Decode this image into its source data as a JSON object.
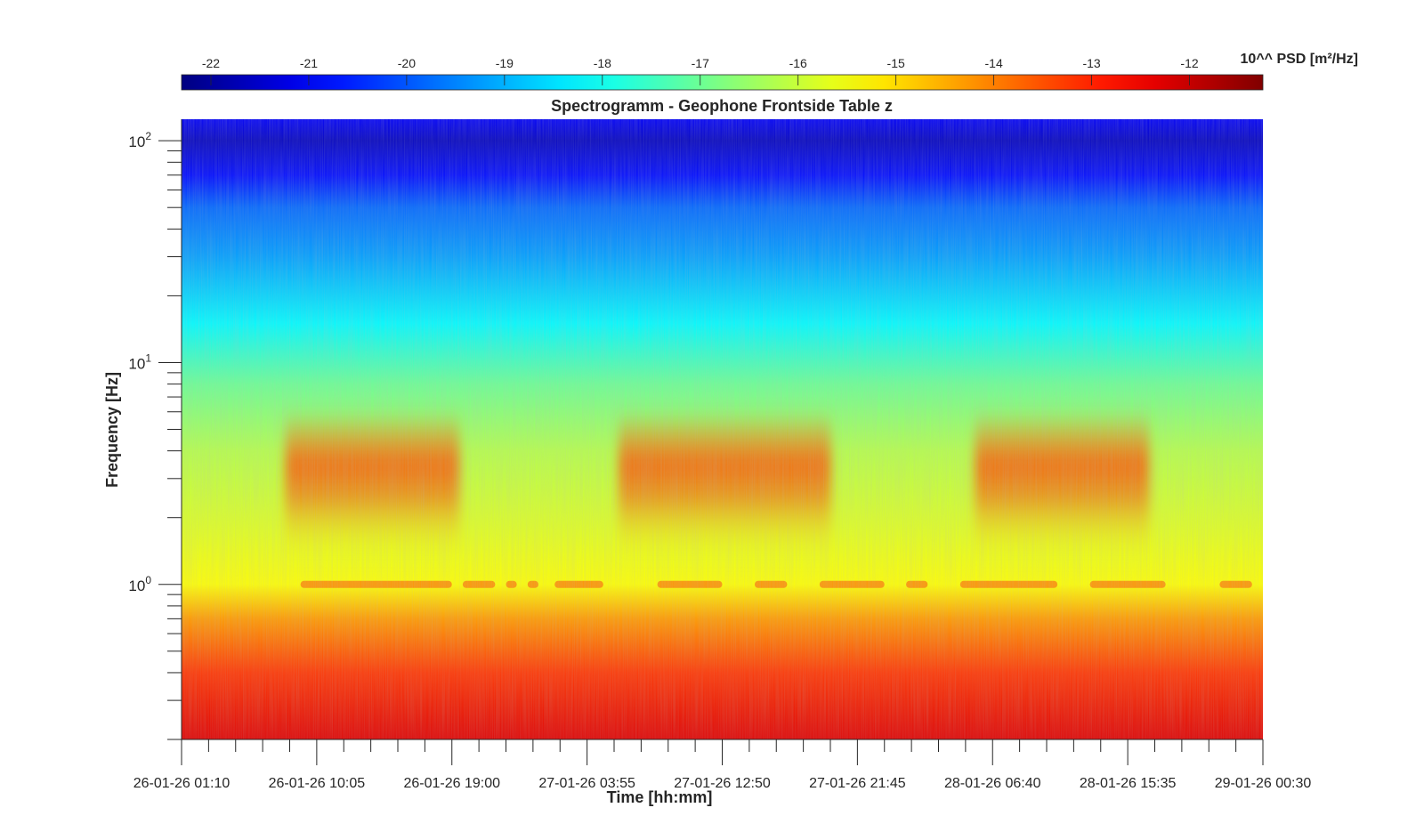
{
  "chart_data": {
    "type": "heatmap",
    "title": "Spectrogramm - Geophone Frontside Table z",
    "xlabel": "Time [hh:mm]",
    "ylabel": "Frequency [Hz]",
    "y_scale": "log",
    "ylim": [
      0.2,
      125
    ],
    "x_ticks": [
      "26-01-26 01:10",
      "26-01-26 10:05",
      "26-01-26 19:00",
      "27-01-26 03:55",
      "27-01-26 12:50",
      "27-01-26 21:45",
      "28-01-26 06:40",
      "28-01-26 15:35",
      "29-01-26 00:30"
    ],
    "y_ticks": [
      {
        "value": 1,
        "base": "10",
        "exponent": "0"
      },
      {
        "value": 10,
        "base": "10",
        "exponent": "1"
      },
      {
        "value": 100,
        "base": "10",
        "exponent": "2"
      }
    ],
    "colorbar": {
      "label": "10^^ PSD [m²/Hz]",
      "ticks": [
        "-22",
        "-21",
        "-20",
        "-19",
        "-18",
        "-17",
        "-16",
        "-15",
        "-14",
        "-13",
        "-12"
      ],
      "range": [
        -22.3,
        -11.25
      ],
      "colormap": "jet"
    },
    "grid": false,
    "features": [
      {
        "description": "daytime activity band",
        "freq_range_hz": [
          2.5,
          5
        ],
        "level": -13.5,
        "periods": [
          "26-01-26 08:00 – 26-01-26 19:30",
          "27-01-26 06:00 – 27-01-26 20:00",
          "28-01-26 05:30 – 28-01-26 17:00"
        ]
      },
      {
        "description": "tonal line",
        "freq_hz": 1.0,
        "level": -14
      }
    ],
    "row_profile": [
      {
        "freq_hz": 125,
        "level": -21.0
      },
      {
        "freq_hz": 100,
        "level": -21.6
      },
      {
        "freq_hz": 70,
        "level": -20.8
      },
      {
        "freq_hz": 50,
        "level": -19.8
      },
      {
        "freq_hz": 30,
        "level": -19.2
      },
      {
        "freq_hz": 15,
        "level": -18.2
      },
      {
        "freq_hz": 8,
        "level": -17.0
      },
      {
        "freq_hz": 4,
        "level": -16.2
      },
      {
        "freq_hz": 2,
        "level": -15.8
      },
      {
        "freq_hz": 1,
        "level": -15.4
      },
      {
        "freq_hz": 0.7,
        "level": -14.3
      },
      {
        "freq_hz": 0.4,
        "level": -13.2
      },
      {
        "freq_hz": 0.2,
        "level": -12.3
      }
    ]
  }
}
